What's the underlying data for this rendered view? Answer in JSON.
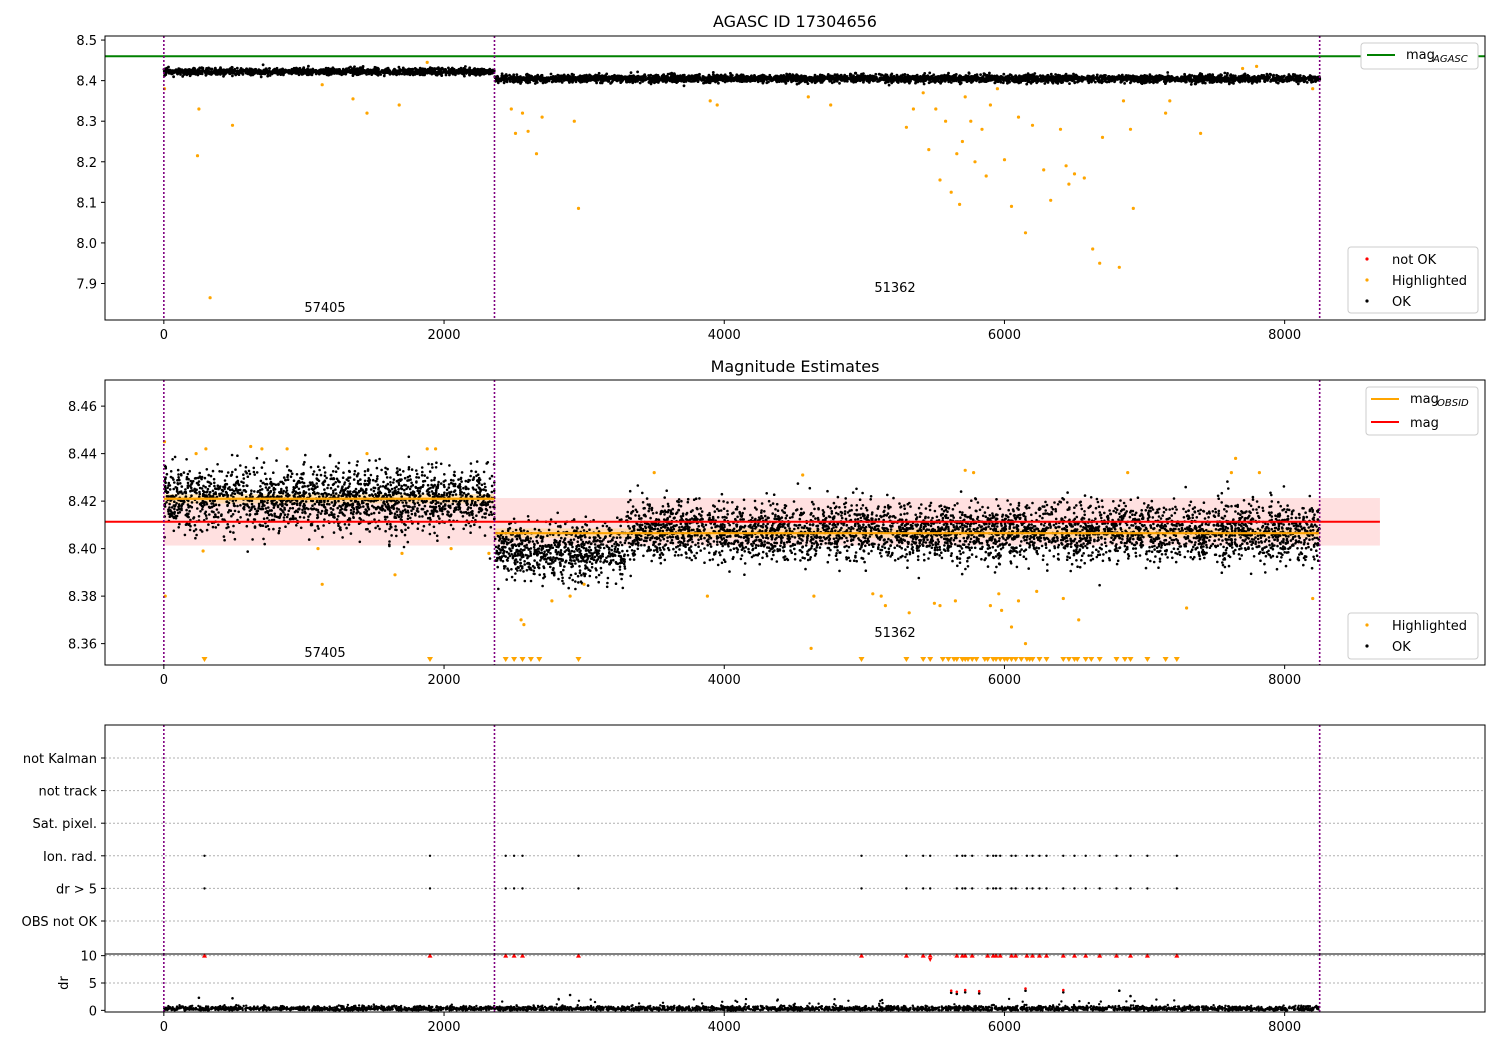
{
  "figure": {
    "title": "AGASC ID 17304656"
  },
  "panel_mag": {
    "legend_top": {
      "line_label": "mag",
      "line_sub": "AGASC"
    },
    "legend_bottom": [
      "not OK",
      "Highlighted",
      "OK"
    ],
    "obsid_labels": [
      {
        "x": 1020,
        "text": "57405"
      },
      {
        "x": 5150,
        "text": "51362"
      }
    ]
  },
  "panel_est": {
    "title": "Magnitude Estimates",
    "legend_top": [
      {
        "label": "mag",
        "sub": "OBSID"
      },
      {
        "label": "mag",
        "sub": ""
      }
    ],
    "legend_bottom": [
      "Highlighted",
      "OK"
    ],
    "obsid_labels": [
      {
        "x": 1020,
        "text": "57405"
      },
      {
        "x": 5150,
        "text": "51362"
      }
    ]
  },
  "panel_flags": {
    "categories": [
      "not Kalman",
      "not track",
      "Sat. pixel.",
      "Ion. rad.",
      "dr > 5",
      "OBS not OK"
    ]
  },
  "panel_dr": {
    "ylabel": "dr"
  },
  "colors": {
    "ok": "#000000",
    "highlighted": "#ffa500",
    "not_ok": "#ff0000",
    "agasc_line": "#008000",
    "mag_line": "#ff0000",
    "obsid_line": "#ffa500",
    "band": "#ffcccc",
    "obsid_boundary": "#800080"
  },
  "chart_data": [
    {
      "type": "scatter",
      "title": "AGASC ID 17304656",
      "xlim": [
        -420,
        9430
      ],
      "ylim": [
        7.81,
        8.51
      ],
      "xticks": [
        0,
        2000,
        4000,
        6000,
        8000
      ],
      "yticks": [
        7.9,
        8.0,
        8.1,
        8.2,
        8.3,
        8.4,
        8.5
      ],
      "mag_agasc": 8.46,
      "obsid_boundaries": [
        0,
        2360,
        8250
      ],
      "series": [
        {
          "name": "OK",
          "segments": [
            {
              "x0": 0,
              "x1": 2360,
              "level": 8.422,
              "spread": 0.007
            },
            {
              "x0": 2360,
              "x1": 8250,
              "level": 8.405,
              "spread": 0.008
            }
          ]
        },
        {
          "name": "Highlighted",
          "points": [
            [
              5,
              8.38
            ],
            [
              240,
              8.215
            ],
            [
              250,
              8.33
            ],
            [
              330,
              7.865
            ],
            [
              490,
              8.29
            ],
            [
              1130,
              8.39
            ],
            [
              1350,
              8.355
            ],
            [
              1450,
              8.32
            ],
            [
              1680,
              8.34
            ],
            [
              1880,
              8.445
            ],
            [
              2480,
              8.33
            ],
            [
              2510,
              8.27
            ],
            [
              2560,
              8.32
            ],
            [
              2600,
              8.275
            ],
            [
              2660,
              8.22
            ],
            [
              2700,
              8.31
            ],
            [
              2930,
              8.3
            ],
            [
              2960,
              8.085
            ],
            [
              3900,
              8.35
            ],
            [
              3950,
              8.34
            ],
            [
              4600,
              8.36
            ],
            [
              4760,
              8.34
            ],
            [
              5300,
              8.285
            ],
            [
              5350,
              8.33
            ],
            [
              5420,
              8.37
            ],
            [
              5460,
              8.23
            ],
            [
              5510,
              8.33
            ],
            [
              5540,
              8.155
            ],
            [
              5580,
              8.3
            ],
            [
              5620,
              8.125
            ],
            [
              5660,
              8.22
            ],
            [
              5680,
              8.095
            ],
            [
              5700,
              8.25
            ],
            [
              5720,
              8.36
            ],
            [
              5760,
              8.3
            ],
            [
              5790,
              8.2
            ],
            [
              5840,
              8.28
            ],
            [
              5870,
              8.165
            ],
            [
              5900,
              8.34
            ],
            [
              5950,
              8.38
            ],
            [
              6000,
              8.205
            ],
            [
              6050,
              8.09
            ],
            [
              6100,
              8.31
            ],
            [
              6150,
              8.025
            ],
            [
              6200,
              8.29
            ],
            [
              6280,
              8.18
            ],
            [
              6330,
              8.105
            ],
            [
              6400,
              8.28
            ],
            [
              6440,
              8.19
            ],
            [
              6460,
              8.145
            ],
            [
              6500,
              8.17
            ],
            [
              6570,
              8.16
            ],
            [
              6630,
              7.985
            ],
            [
              6680,
              7.95
            ],
            [
              6700,
              8.26
            ],
            [
              6820,
              7.94
            ],
            [
              6850,
              8.35
            ],
            [
              6900,
              8.28
            ],
            [
              6920,
              8.085
            ],
            [
              7150,
              8.32
            ],
            [
              7180,
              8.35
            ],
            [
              7400,
              8.27
            ],
            [
              7700,
              8.43
            ],
            [
              7800,
              8.435
            ],
            [
              8200,
              8.38
            ]
          ]
        },
        {
          "name": "not OK",
          "points": []
        }
      ]
    },
    {
      "type": "scatter",
      "title": "Magnitude Estimates",
      "xlim": [
        -420,
        9430
      ],
      "ylim": [
        8.351,
        8.471
      ],
      "xticks": [
        0,
        2000,
        4000,
        6000,
        8000
      ],
      "yticks": [
        8.36,
        8.38,
        8.4,
        8.42,
        8.44,
        8.46
      ],
      "mag": 8.4113,
      "mag_band": [
        8.4013,
        8.4213
      ],
      "mag_obsid": [
        {
          "x0": 0,
          "x1": 2360,
          "value": 8.421
        },
        {
          "x0": 2360,
          "x1": 8250,
          "value": 8.4065
        }
      ],
      "obsid_boundaries": [
        0,
        2360,
        8250
      ],
      "series": [
        {
          "name": "OK",
          "segments": [
            {
              "x0": 0,
              "x1": 2360,
              "level": 8.421,
              "spread": 0.009
            },
            {
              "x0": 2360,
              "x1": 3300,
              "level": 8.399,
              "spread": 0.008
            },
            {
              "x0": 3300,
              "x1": 8250,
              "level": 8.407,
              "spread": 0.008
            }
          ]
        },
        {
          "name": "Highlighted",
          "points": [
            [
              5,
              8.445
            ],
            [
              10,
              8.38
            ],
            [
              230,
              8.44
            ],
            [
              280,
              8.399
            ],
            [
              300,
              8.442
            ],
            [
              620,
              8.443
            ],
            [
              700,
              8.442
            ],
            [
              880,
              8.442
            ],
            [
              1100,
              8.4
            ],
            [
              1130,
              8.385
            ],
            [
              1450,
              8.44
            ],
            [
              1650,
              8.389
            ],
            [
              1700,
              8.398
            ],
            [
              1880,
              8.442
            ],
            [
              1940,
              8.442
            ],
            [
              2050,
              8.4
            ],
            [
              2320,
              8.398
            ],
            [
              2550,
              8.37
            ],
            [
              2570,
              8.368
            ],
            [
              2770,
              8.378
            ],
            [
              2900,
              8.38
            ],
            [
              3000,
              8.385
            ],
            [
              3500,
              8.432
            ],
            [
              3880,
              8.38
            ],
            [
              4560,
              8.431
            ],
            [
              4620,
              8.358
            ],
            [
              4640,
              8.38
            ],
            [
              5060,
              8.381
            ],
            [
              5120,
              8.38
            ],
            [
              5150,
              8.376
            ],
            [
              5320,
              8.373
            ],
            [
              5500,
              8.377
            ],
            [
              5540,
              8.376
            ],
            [
              5650,
              8.378
            ],
            [
              5720,
              8.433
            ],
            [
              5780,
              8.432
            ],
            [
              5900,
              8.376
            ],
            [
              5960,
              8.381
            ],
            [
              5980,
              8.374
            ],
            [
              6050,
              8.367
            ],
            [
              6100,
              8.378
            ],
            [
              6150,
              8.36
            ],
            [
              6230,
              8.382
            ],
            [
              6420,
              8.379
            ],
            [
              6530,
              8.37
            ],
            [
              6880,
              8.432
            ],
            [
              7300,
              8.375
            ],
            [
              7620,
              8.432
            ],
            [
              7650,
              8.438
            ],
            [
              7820,
              8.432
            ],
            [
              8200,
              8.379
            ]
          ]
        }
      ]
    },
    {
      "type": "scatter",
      "title": "",
      "xlim": [
        -420,
        9430
      ],
      "categories": [
        "not Kalman",
        "not track",
        "Sat. pixel.",
        "Ion. rad.",
        "dr > 5",
        "OBS not OK"
      ],
      "series": [
        {
          "name": "Ion. rad.",
          "x": [
            290,
            1900,
            2440,
            2500,
            2560,
            2960,
            4980,
            5300,
            5420,
            5470,
            5660,
            5700,
            5720,
            5770,
            5880,
            5920,
            5940,
            5970,
            6050,
            6080,
            6160,
            6200,
            6250,
            6300,
            6420,
            6500,
            6580,
            6680,
            6800,
            6900,
            7020,
            7230
          ]
        },
        {
          "name": "dr > 5",
          "x": [
            290,
            1900,
            2440,
            2500,
            2560,
            2960,
            4980,
            5300,
            5420,
            5470,
            5660,
            5700,
            5720,
            5770,
            5880,
            5920,
            5940,
            5970,
            6050,
            6080,
            6160,
            6200,
            6250,
            6300,
            6420,
            6500,
            6580,
            6680,
            6800,
            6900,
            7020,
            7230
          ]
        }
      ]
    },
    {
      "type": "scatter",
      "title": "",
      "xlim": [
        -420,
        9430
      ],
      "ylim": [
        -0.3,
        10.3
      ],
      "yticks": [
        0,
        5,
        10
      ],
      "ylabel": "dr",
      "xticks": [
        0,
        2000,
        4000,
        6000,
        8000
      ],
      "series": [
        {
          "name": "OK",
          "level": 0.3,
          "spread": 0.25,
          "extra_points": [
            [
              250,
              2.3
            ],
            [
              490,
              2.2
            ],
            [
              2900,
              2.8
            ],
            [
              5620,
              3.2
            ],
            [
              5660,
              3.0
            ],
            [
              5720,
              3.3
            ],
            [
              5820,
              3.1
            ],
            [
              6150,
              3.6
            ],
            [
              6420,
              3.3
            ],
            [
              6820,
              3.6
            ],
            [
              6900,
              2.6
            ]
          ]
        },
        {
          "name": "not OK",
          "y_value": 10,
          "x": [
            290,
            1900,
            2440,
            2500,
            2560,
            2960,
            4980,
            5300,
            5420,
            5470,
            5660,
            5700,
            5720,
            5770,
            5880,
            5920,
            5940,
            5970,
            6050,
            6080,
            6160,
            6200,
            6250,
            6300,
            6420,
            6500,
            6580,
            6680,
            6800,
            6900,
            7020,
            7230
          ]
        }
      ]
    }
  ]
}
